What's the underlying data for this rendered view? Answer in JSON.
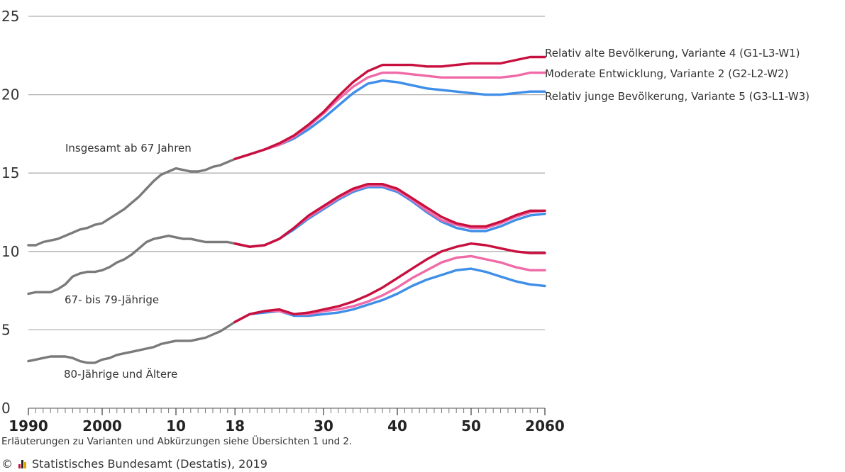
{
  "chart_data": {
    "type": "line",
    "ylim": [
      0,
      25
    ],
    "yticks": [
      0,
      5,
      10,
      15,
      20,
      25
    ],
    "xlim": [
      1990,
      2060
    ],
    "xticks": [
      {
        "value": 1990,
        "label": "1990"
      },
      {
        "value": 2000,
        "label": "2000"
      },
      {
        "value": 2010,
        "label": "10"
      },
      {
        "value": 2018,
        "label": "18"
      },
      {
        "value": 2030,
        "label": "30"
      },
      {
        "value": 2040,
        "label": "40"
      },
      {
        "value": 2050,
        "label": "50"
      },
      {
        "value": 2060,
        "label": "2060"
      }
    ],
    "grid": true,
    "colors": {
      "history": "#7a7a7a",
      "v4": "#c8103e",
      "v2": "#f06aa8",
      "v5": "#3f8ee8",
      "grid": "#b0b0b0"
    },
    "annotations": [
      {
        "text": "Insgesamt ab 67 Jahren"
      },
      {
        "text": "67- bis 79-Jährige"
      },
      {
        "text": "80-Jährige und Ältere"
      }
    ],
    "legend": [
      {
        "key": "v4",
        "text": "Relativ alte Bevölkerung, Variante 4 (G1-L3-W1)"
      },
      {
        "key": "v2",
        "text": "Moderate Entwicklung, Variante 2 (G2-L2-W2)"
      },
      {
        "key": "v5",
        "text": "Relativ junge Bevölkerung, Variante 5 (G3-L1-W3)"
      }
    ],
    "groups": [
      {
        "group": "Insgesamt ab 67 Jahren",
        "history": {
          "x": [
            1990,
            1991,
            1992,
            1993,
            1994,
            1995,
            1996,
            1997,
            1998,
            1999,
            2000,
            2001,
            2002,
            2003,
            2004,
            2005,
            2006,
            2007,
            2008,
            2009,
            2010,
            2011,
            2012,
            2013,
            2014,
            2015,
            2016,
            2017,
            2018
          ],
          "y": [
            10.4,
            10.4,
            10.6,
            10.7,
            10.8,
            11.0,
            11.2,
            11.4,
            11.5,
            11.7,
            11.8,
            12.1,
            12.4,
            12.7,
            13.1,
            13.5,
            14.0,
            14.5,
            14.9,
            15.1,
            15.3,
            15.2,
            15.1,
            15.1,
            15.2,
            15.4,
            15.5,
            15.7,
            15.9
          ]
        },
        "series": [
          {
            "key": "v4",
            "x": [
              2018,
              2020,
              2022,
              2024,
              2026,
              2028,
              2030,
              2032,
              2034,
              2036,
              2038,
              2040,
              2042,
              2044,
              2046,
              2048,
              2050,
              2052,
              2054,
              2056,
              2058,
              2060
            ],
            "y": [
              15.9,
              16.2,
              16.5,
              16.9,
              17.4,
              18.1,
              18.9,
              19.9,
              20.8,
              21.5,
              21.9,
              21.9,
              21.9,
              21.8,
              21.8,
              21.9,
              22.0,
              22.0,
              22.0,
              22.2,
              22.4,
              22.4
            ]
          },
          {
            "key": "v2",
            "x": [
              2018,
              2020,
              2022,
              2024,
              2026,
              2028,
              2030,
              2032,
              2034,
              2036,
              2038,
              2040,
              2042,
              2044,
              2046,
              2048,
              2050,
              2052,
              2054,
              2056,
              2058,
              2060
            ],
            "y": [
              15.9,
              16.2,
              16.5,
              16.8,
              17.3,
              18.0,
              18.8,
              19.7,
              20.5,
              21.1,
              21.4,
              21.4,
              21.3,
              21.2,
              21.1,
              21.1,
              21.1,
              21.1,
              21.1,
              21.2,
              21.4,
              21.4
            ]
          },
          {
            "key": "v5",
            "x": [
              2018,
              2020,
              2022,
              2024,
              2026,
              2028,
              2030,
              2032,
              2034,
              2036,
              2038,
              2040,
              2042,
              2044,
              2046,
              2048,
              2050,
              2052,
              2054,
              2056,
              2058,
              2060
            ],
            "y": [
              15.9,
              16.2,
              16.5,
              16.8,
              17.2,
              17.8,
              18.5,
              19.3,
              20.1,
              20.7,
              20.9,
              20.8,
              20.6,
              20.4,
              20.3,
              20.2,
              20.1,
              20.0,
              20.0,
              20.1,
              20.2,
              20.2
            ]
          }
        ]
      },
      {
        "group": "67- bis 79-Jährige",
        "history": {
          "x": [
            1990,
            1991,
            1992,
            1993,
            1994,
            1995,
            1996,
            1997,
            1998,
            1999,
            2000,
            2001,
            2002,
            2003,
            2004,
            2005,
            2006,
            2007,
            2008,
            2009,
            2010,
            2011,
            2012,
            2013,
            2014,
            2015,
            2016,
            2017,
            2018
          ],
          "y": [
            7.3,
            7.4,
            7.4,
            7.4,
            7.6,
            7.9,
            8.4,
            8.6,
            8.7,
            8.7,
            8.8,
            9.0,
            9.3,
            9.5,
            9.8,
            10.2,
            10.6,
            10.8,
            10.9,
            11.0,
            10.9,
            10.8,
            10.8,
            10.7,
            10.6,
            10.6,
            10.6,
            10.6,
            10.5
          ]
        },
        "series": [
          {
            "key": "v4",
            "x": [
              2018,
              2020,
              2022,
              2024,
              2026,
              2028,
              2030,
              2032,
              2034,
              2036,
              2038,
              2040,
              2042,
              2044,
              2046,
              2048,
              2050,
              2052,
              2054,
              2056,
              2058,
              2060
            ],
            "y": [
              10.5,
              10.3,
              10.4,
              10.8,
              11.5,
              12.3,
              12.9,
              13.5,
              14.0,
              14.3,
              14.3,
              14.0,
              13.4,
              12.8,
              12.2,
              11.8,
              11.6,
              11.6,
              11.9,
              12.3,
              12.6,
              12.6
            ]
          },
          {
            "key": "v2",
            "x": [
              2018,
              2020,
              2022,
              2024,
              2026,
              2028,
              2030,
              2032,
              2034,
              2036,
              2038,
              2040,
              2042,
              2044,
              2046,
              2048,
              2050,
              2052,
              2054,
              2056,
              2058,
              2060
            ],
            "y": [
              10.5,
              10.3,
              10.4,
              10.8,
              11.5,
              12.2,
              12.8,
              13.4,
              13.9,
              14.2,
              14.2,
              13.9,
              13.3,
              12.6,
              12.0,
              11.7,
              11.5,
              11.5,
              11.8,
              12.2,
              12.5,
              12.6
            ]
          },
          {
            "key": "v5",
            "x": [
              2018,
              2020,
              2022,
              2024,
              2026,
              2028,
              2030,
              2032,
              2034,
              2036,
              2038,
              2040,
              2042,
              2044,
              2046,
              2048,
              2050,
              2052,
              2054,
              2056,
              2058,
              2060
            ],
            "y": [
              10.5,
              10.3,
              10.4,
              10.8,
              11.4,
              12.1,
              12.7,
              13.3,
              13.8,
              14.1,
              14.1,
              13.8,
              13.2,
              12.5,
              11.9,
              11.5,
              11.3,
              11.3,
              11.6,
              12.0,
              12.3,
              12.4
            ]
          }
        ]
      },
      {
        "group": "80-Jährige und Ältere",
        "history": {
          "x": [
            1990,
            1991,
            1992,
            1993,
            1994,
            1995,
            1996,
            1997,
            1998,
            1999,
            2000,
            2001,
            2002,
            2003,
            2004,
            2005,
            2006,
            2007,
            2008,
            2009,
            2010,
            2011,
            2012,
            2013,
            2014,
            2015,
            2016,
            2017,
            2018
          ],
          "y": [
            3.0,
            3.1,
            3.2,
            3.3,
            3.3,
            3.3,
            3.2,
            3.0,
            2.9,
            2.9,
            3.1,
            3.2,
            3.4,
            3.5,
            3.6,
            3.7,
            3.8,
            3.9,
            4.1,
            4.2,
            4.3,
            4.3,
            4.3,
            4.4,
            4.5,
            4.7,
            4.9,
            5.2,
            5.5
          ]
        },
        "series": [
          {
            "key": "v4",
            "x": [
              2018,
              2020,
              2022,
              2024,
              2026,
              2028,
              2030,
              2032,
              2034,
              2036,
              2038,
              2040,
              2042,
              2044,
              2046,
              2048,
              2050,
              2052,
              2054,
              2056,
              2058,
              2060
            ],
            "y": [
              5.5,
              6.0,
              6.2,
              6.3,
              6.0,
              6.1,
              6.3,
              6.5,
              6.8,
              7.2,
              7.7,
              8.3,
              8.9,
              9.5,
              10.0,
              10.3,
              10.5,
              10.4,
              10.2,
              10.0,
              9.9,
              9.9
            ]
          },
          {
            "key": "v2",
            "x": [
              2018,
              2020,
              2022,
              2024,
              2026,
              2028,
              2030,
              2032,
              2034,
              2036,
              2038,
              2040,
              2042,
              2044,
              2046,
              2048,
              2050,
              2052,
              2054,
              2056,
              2058,
              2060
            ],
            "y": [
              5.5,
              6.0,
              6.2,
              6.2,
              6.0,
              6.0,
              6.2,
              6.3,
              6.5,
              6.8,
              7.2,
              7.7,
              8.3,
              8.8,
              9.3,
              9.6,
              9.7,
              9.5,
              9.3,
              9.0,
              8.8,
              8.8
            ]
          },
          {
            "key": "v5",
            "x": [
              2018,
              2020,
              2022,
              2024,
              2026,
              2028,
              2030,
              2032,
              2034,
              2036,
              2038,
              2040,
              2042,
              2044,
              2046,
              2048,
              2050,
              2052,
              2054,
              2056,
              2058,
              2060
            ],
            "y": [
              5.5,
              6.0,
              6.1,
              6.2,
              5.9,
              5.9,
              6.0,
              6.1,
              6.3,
              6.6,
              6.9,
              7.3,
              7.8,
              8.2,
              8.5,
              8.8,
              8.9,
              8.7,
              8.4,
              8.1,
              7.9,
              7.8
            ]
          }
        ]
      }
    ]
  },
  "footer": {
    "note": "Erläuterungen zu Varianten und Abkürzungen siehe Übersichten 1 und 2.",
    "copyright": "©",
    "source": "Statistisches Bundesamt (Destatis), 2019"
  }
}
